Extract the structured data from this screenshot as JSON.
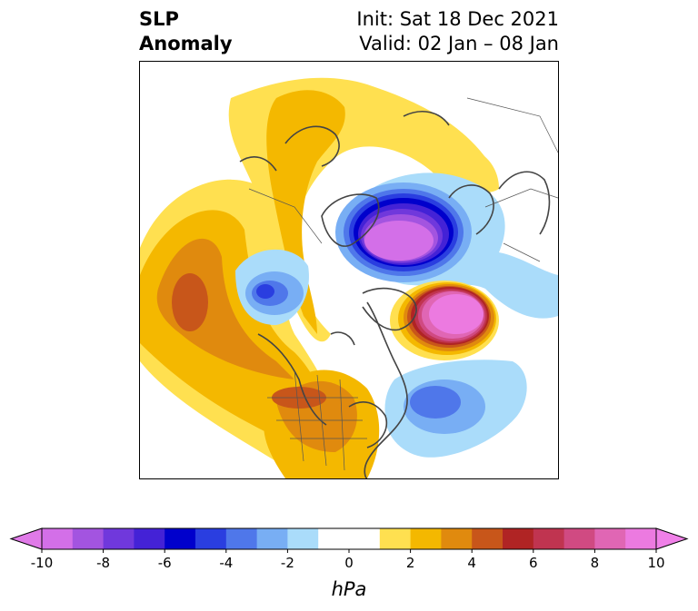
{
  "title": {
    "variable": "SLP",
    "subtitle": "Anomaly",
    "init": "Init: Sat 18 Dec 2021",
    "valid": "Valid: 02 Jan – 08 Jan"
  },
  "colorbar": {
    "unit": "hPa",
    "min": -10,
    "max": 10,
    "ticks": [
      "-10",
      "-8",
      "-6",
      "-4",
      "-2",
      "0",
      "2",
      "4",
      "6",
      "8",
      "10"
    ],
    "colors": [
      "#d36fe8",
      "#a354e0",
      "#7038dc",
      "#4422d6",
      "#0000cc",
      "#2a3ee0",
      "#4f77ea",
      "#78aef4",
      "#aadcfa",
      "#ffffff",
      "#ffffff",
      "#ffe050",
      "#f4b800",
      "#e08a0e",
      "#c8561a",
      "#b02424",
      "#c03450",
      "#d04a82",
      "#e066b4",
      "#ec7ae0"
    ],
    "under_color": "#e07ae8",
    "over_color": "#f080e8"
  },
  "map": {
    "projection": "polar-stereographic",
    "region": "Northern Hemisphere",
    "features": {
      "negative_low_arctic": -10,
      "positive_high_north_pacific": 10,
      "negative_low_north_atlantic": -4,
      "negative_low_west_europe": -5,
      "positive_ridge_east_atlantic": 4
    }
  }
}
